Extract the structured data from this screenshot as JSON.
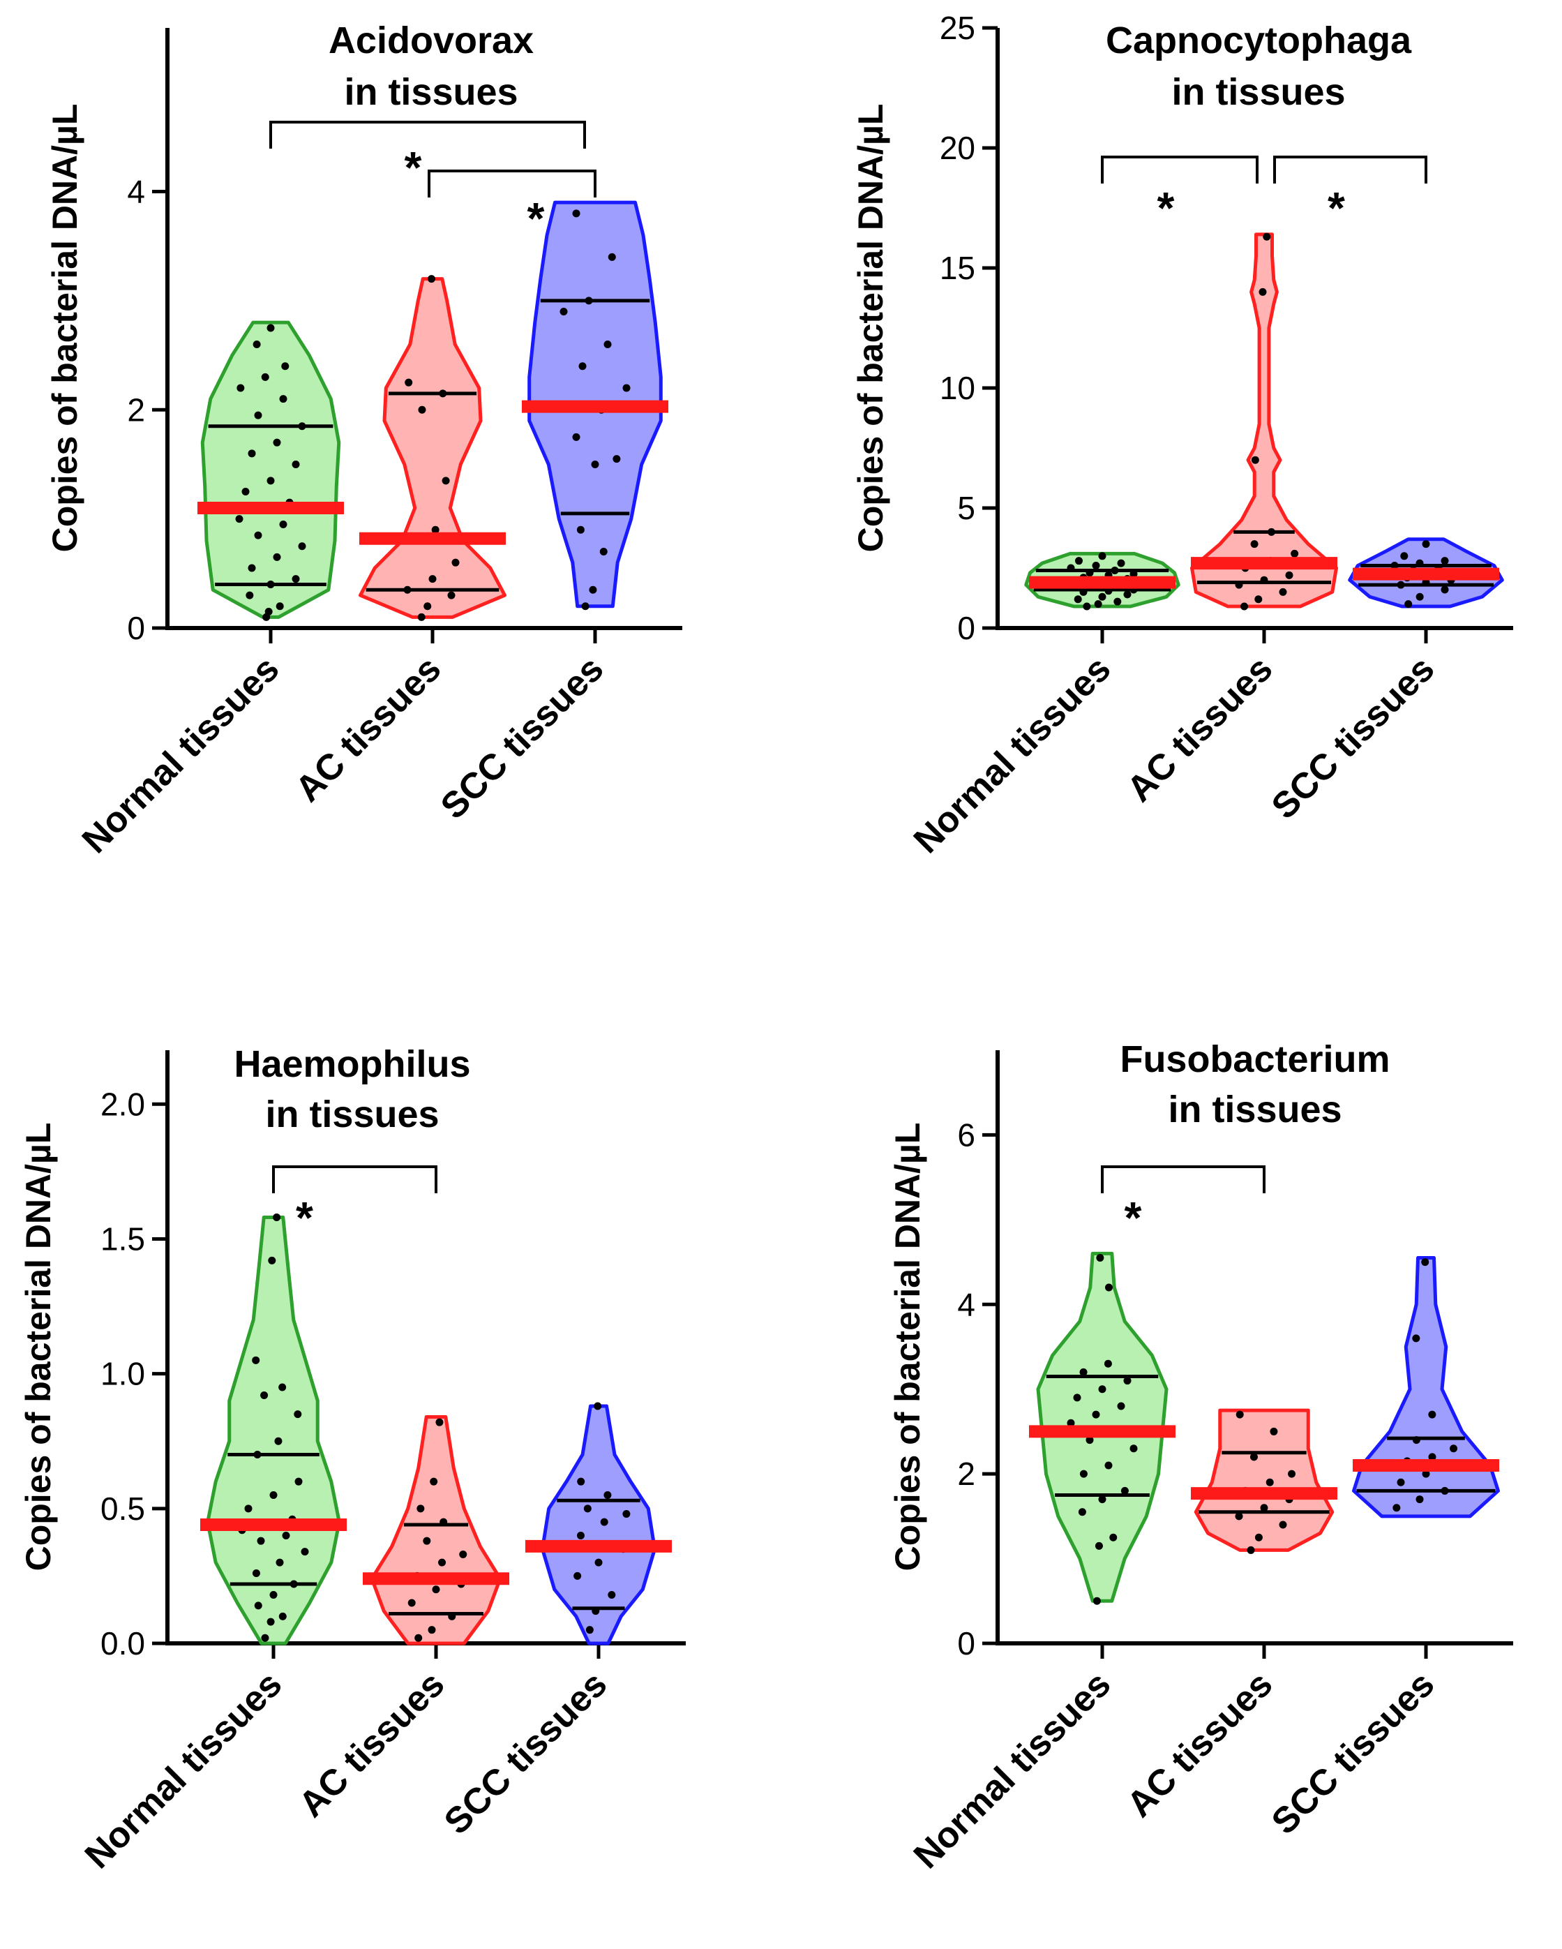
{
  "chart_data": [
    {
      "id": "acidovorax",
      "type": "violin",
      "title": [
        "Acidovorax",
        "in tissues"
      ],
      "ylabel": "Copies of bacterial DNA/µL",
      "ylim": [
        0,
        5.5
      ],
      "yticks": [
        0,
        2,
        4
      ],
      "categories": [
        "Normal tissues",
        "AC tissues",
        "SCC tissues"
      ],
      "colors": {
        "stroke": [
          "#2ea02e",
          "#ff2020",
          "#1a1aff"
        ],
        "fill": [
          "#b7f0b0",
          "#ffb3b3",
          "#9e9eff"
        ],
        "median": "#ff1a1a"
      },
      "series": [
        {
          "name": "Normal tissues",
          "min": 0.1,
          "max": 2.8,
          "q1": 0.4,
          "median": 1.1,
          "q3": 1.85,
          "profile": [
            [
              0.1,
              0.1
            ],
            [
              0.35,
              0.72
            ],
            [
              0.8,
              0.8
            ],
            [
              1.3,
              0.82
            ],
            [
              1.7,
              0.85
            ],
            [
              2.1,
              0.75
            ],
            [
              2.5,
              0.48
            ],
            [
              2.8,
              0.22
            ]
          ],
          "points": [
            0.1,
            0.15,
            0.2,
            0.3,
            0.4,
            0.45,
            0.55,
            0.65,
            0.75,
            0.85,
            0.95,
            1.0,
            1.1,
            1.15,
            1.25,
            1.35,
            1.5,
            1.6,
            1.7,
            1.85,
            1.95,
            2.1,
            2.2,
            2.3,
            2.4,
            2.6,
            2.75
          ]
        },
        {
          "name": "AC tissues",
          "min": 0.1,
          "max": 3.2,
          "q1": 0.35,
          "median": 0.82,
          "q3": 2.15,
          "profile": [
            [
              0.1,
              0.25
            ],
            [
              0.3,
              0.9
            ],
            [
              0.55,
              0.72
            ],
            [
              0.8,
              0.38
            ],
            [
              1.1,
              0.22
            ],
            [
              1.5,
              0.35
            ],
            [
              1.9,
              0.6
            ],
            [
              2.2,
              0.58
            ],
            [
              2.6,
              0.28
            ],
            [
              3.0,
              0.18
            ],
            [
              3.2,
              0.12
            ]
          ],
          "points": [
            0.1,
            0.2,
            0.3,
            0.35,
            0.45,
            0.6,
            0.8,
            0.9,
            1.35,
            2.0,
            2.15,
            2.25,
            3.2
          ]
        },
        {
          "name": "SCC tissues",
          "min": 0.2,
          "max": 3.9,
          "q1": 1.05,
          "median": 2.03,
          "q3": 3.0,
          "profile": [
            [
              0.2,
              0.22
            ],
            [
              0.6,
              0.28
            ],
            [
              1.0,
              0.45
            ],
            [
              1.5,
              0.58
            ],
            [
              1.9,
              0.82
            ],
            [
              2.3,
              0.82
            ],
            [
              2.8,
              0.75
            ],
            [
              3.2,
              0.68
            ],
            [
              3.6,
              0.6
            ],
            [
              3.9,
              0.5
            ]
          ],
          "points": [
            0.2,
            0.35,
            0.7,
            0.9,
            1.5,
            1.55,
            1.75,
            2.0,
            2.2,
            2.4,
            2.6,
            2.9,
            3.0,
            3.4,
            3.8
          ]
        }
      ],
      "significance": [
        {
          "from": 0,
          "to": 2,
          "label": "*"
        },
        {
          "from": 1,
          "to": 2,
          "label": "*"
        }
      ]
    },
    {
      "id": "capnocytophaga",
      "type": "violin",
      "title": [
        "Capnocytophaga",
        "in tissues"
      ],
      "ylabel": "Copies of bacterial DNA/µL",
      "ylim": [
        0,
        25
      ],
      "yticks": [
        0,
        5,
        10,
        15,
        20,
        25
      ],
      "categories": [
        "Normal tissues",
        "AC tissues",
        "SCC tissues"
      ],
      "colors": {
        "stroke": [
          "#2ea02e",
          "#ff2020",
          "#1a1aff"
        ],
        "fill": [
          "#b7f0b0",
          "#ffb3b3",
          "#9e9eff"
        ],
        "median": "#ff1a1a"
      },
      "series": [
        {
          "name": "Normal tissues",
          "min": 0.9,
          "max": 3.1,
          "q1": 1.6,
          "median": 1.9,
          "q3": 2.4,
          "profile": [
            [
              0.9,
              0.35
            ],
            [
              1.3,
              0.8
            ],
            [
              1.8,
              0.95
            ],
            [
              2.3,
              0.9
            ],
            [
              2.7,
              0.75
            ],
            [
              3.1,
              0.4
            ]
          ],
          "points": [
            0.9,
            1.0,
            1.1,
            1.2,
            1.3,
            1.4,
            1.5,
            1.55,
            1.6,
            1.7,
            1.75,
            1.8,
            1.85,
            1.9,
            1.95,
            2.0,
            2.05,
            2.1,
            2.2,
            2.25,
            2.3,
            2.4,
            2.5,
            2.6,
            2.7,
            2.8,
            3.0
          ]
        },
        {
          "name": "AC tissues",
          "min": 0.9,
          "max": 16.4,
          "q1": 1.9,
          "median": 2.7,
          "q3": 4.0,
          "profile": [
            [
              0.9,
              0.45
            ],
            [
              1.5,
              0.85
            ],
            [
              2.5,
              0.9
            ],
            [
              3.5,
              0.55
            ],
            [
              4.5,
              0.28
            ],
            [
              5.5,
              0.12
            ],
            [
              6.5,
              0.12
            ],
            [
              7.0,
              0.2
            ],
            [
              7.5,
              0.12
            ],
            [
              8.5,
              0.06
            ],
            [
              12.5,
              0.06
            ],
            [
              13.5,
              0.12
            ],
            [
              14.0,
              0.16
            ],
            [
              14.5,
              0.12
            ],
            [
              15.5,
              0.1
            ],
            [
              16.4,
              0.1
            ]
          ],
          "points": [
            0.9,
            1.2,
            1.5,
            1.8,
            2.0,
            2.2,
            2.5,
            2.8,
            3.1,
            3.5,
            4.0,
            7.0,
            14.0,
            16.3
          ]
        },
        {
          "name": "SCC tissues",
          "min": 0.9,
          "max": 3.7,
          "q1": 1.8,
          "median": 2.25,
          "q3": 2.6,
          "profile": [
            [
              0.9,
              0.3
            ],
            [
              1.3,
              0.7
            ],
            [
              2.0,
              0.95
            ],
            [
              2.6,
              0.85
            ],
            [
              3.2,
              0.5
            ],
            [
              3.7,
              0.22
            ]
          ],
          "points": [
            1.0,
            1.3,
            1.6,
            1.8,
            1.9,
            2.0,
            2.1,
            2.2,
            2.3,
            2.4,
            2.5,
            2.6,
            2.7,
            2.8,
            3.0,
            3.5
          ]
        }
      ],
      "significance": [
        {
          "from": 0,
          "to": 1,
          "label": "*"
        },
        {
          "from": 1,
          "to": 2,
          "label": "*"
        }
      ]
    },
    {
      "id": "haemophilus",
      "type": "violin",
      "title": [
        "Haemophilus",
        "in tissues"
      ],
      "ylabel": "Copies of bacterial DNA/µL",
      "ylim": [
        0,
        2.2
      ],
      "yticks": [
        "0.0",
        "0.5",
        "1.0",
        "1.5",
        "2.0"
      ],
      "categories": [
        "Normal tissues",
        "AC tissues",
        "SCC tissues"
      ],
      "colors": {
        "stroke": [
          "#2ea02e",
          "#ff2020",
          "#1a1aff"
        ],
        "fill": [
          "#b7f0b0",
          "#ffb3b3",
          "#9e9eff"
        ],
        "median": "#ff1a1a"
      },
      "series": [
        {
          "name": "Normal tissues",
          "min": 0.0,
          "max": 1.58,
          "q1": 0.22,
          "median": 0.44,
          "q3": 0.7,
          "profile": [
            [
              0.0,
              0.15
            ],
            [
              0.15,
              0.45
            ],
            [
              0.3,
              0.72
            ],
            [
              0.45,
              0.82
            ],
            [
              0.6,
              0.72
            ],
            [
              0.75,
              0.55
            ],
            [
              0.9,
              0.55
            ],
            [
              1.05,
              0.4
            ],
            [
              1.2,
              0.25
            ],
            [
              1.4,
              0.18
            ],
            [
              1.58,
              0.12
            ]
          ],
          "points": [
            0.02,
            0.08,
            0.1,
            0.14,
            0.18,
            0.22,
            0.26,
            0.3,
            0.34,
            0.38,
            0.4,
            0.42,
            0.44,
            0.46,
            0.5,
            0.55,
            0.6,
            0.7,
            0.75,
            0.85,
            0.92,
            0.95,
            1.05,
            1.42,
            1.58
          ]
        },
        {
          "name": "AC tissues",
          "min": 0.0,
          "max": 0.84,
          "q1": 0.11,
          "median": 0.24,
          "q3": 0.44,
          "profile": [
            [
              0.0,
              0.35
            ],
            [
              0.12,
              0.65
            ],
            [
              0.24,
              0.8
            ],
            [
              0.36,
              0.55
            ],
            [
              0.5,
              0.35
            ],
            [
              0.65,
              0.22
            ],
            [
              0.84,
              0.12
            ]
          ],
          "points": [
            0.02,
            0.05,
            0.1,
            0.15,
            0.2,
            0.22,
            0.25,
            0.3,
            0.33,
            0.38,
            0.45,
            0.5,
            0.6,
            0.82
          ]
        },
        {
          "name": "SCC tissues",
          "min": 0.0,
          "max": 0.88,
          "q1": 0.13,
          "median": 0.36,
          "q3": 0.53,
          "profile": [
            [
              0.0,
              0.12
            ],
            [
              0.1,
              0.28
            ],
            [
              0.2,
              0.55
            ],
            [
              0.35,
              0.7
            ],
            [
              0.5,
              0.62
            ],
            [
              0.6,
              0.4
            ],
            [
              0.7,
              0.2
            ],
            [
              0.88,
              0.1
            ]
          ],
          "points": [
            0.05,
            0.12,
            0.18,
            0.25,
            0.3,
            0.35,
            0.4,
            0.45,
            0.48,
            0.5,
            0.55,
            0.6,
            0.88
          ]
        }
      ],
      "significance": [
        {
          "from": 0,
          "to": 1,
          "label": "*"
        }
      ]
    },
    {
      "id": "fusobacterium",
      "type": "violin",
      "title": [
        "Fusobacterium",
        "in tissues"
      ],
      "ylabel": "Copies of bacterial DNA/µL",
      "ylim": [
        0,
        7
      ],
      "yticks": [
        0,
        2,
        4,
        6
      ],
      "categories": [
        "Normal tissues",
        "AC tissues",
        "SCC tissues"
      ],
      "colors": {
        "stroke": [
          "#2ea02e",
          "#ff2020",
          "#1a1aff"
        ],
        "fill": [
          "#b7f0b0",
          "#ffb3b3",
          "#9e9eff"
        ],
        "median": "#ff1a1a"
      },
      "series": [
        {
          "name": "Normal tissues",
          "min": 0.5,
          "max": 4.6,
          "q1": 1.75,
          "median": 2.5,
          "q3": 3.15,
          "profile": [
            [
              0.5,
              0.12
            ],
            [
              1.0,
              0.28
            ],
            [
              1.5,
              0.55
            ],
            [
              2.0,
              0.7
            ],
            [
              2.5,
              0.75
            ],
            [
              3.0,
              0.8
            ],
            [
              3.4,
              0.62
            ],
            [
              3.8,
              0.28
            ],
            [
              4.2,
              0.15
            ],
            [
              4.6,
              0.12
            ]
          ],
          "points": [
            0.5,
            1.15,
            1.25,
            1.55,
            1.7,
            1.8,
            2.0,
            2.1,
            2.3,
            2.4,
            2.5,
            2.6,
            2.7,
            2.8,
            2.9,
            3.0,
            3.1,
            3.2,
            3.3,
            4.2,
            4.55
          ]
        },
        {
          "name": "AC tissues",
          "min": 1.1,
          "max": 2.75,
          "q1": 1.55,
          "median": 1.77,
          "q3": 2.25,
          "profile": [
            [
              1.1,
              0.3
            ],
            [
              1.3,
              0.7
            ],
            [
              1.55,
              0.85
            ],
            [
              1.9,
              0.65
            ],
            [
              2.3,
              0.55
            ],
            [
              2.75,
              0.55
            ]
          ],
          "points": [
            1.1,
            1.25,
            1.4,
            1.5,
            1.6,
            1.7,
            1.8,
            1.9,
            2.0,
            2.2,
            2.5,
            2.7
          ]
        },
        {
          "name": "SCC tissues",
          "min": 1.5,
          "max": 4.55,
          "q1": 1.8,
          "median": 2.1,
          "q3": 2.42,
          "profile": [
            [
              1.5,
              0.55
            ],
            [
              1.8,
              0.9
            ],
            [
              2.1,
              0.8
            ],
            [
              2.5,
              0.45
            ],
            [
              3.0,
              0.2
            ],
            [
              3.5,
              0.25
            ],
            [
              4.0,
              0.12
            ],
            [
              4.55,
              0.1
            ]
          ],
          "points": [
            1.6,
            1.7,
            1.8,
            1.9,
            2.0,
            2.1,
            2.15,
            2.2,
            2.3,
            2.4,
            2.7,
            3.6,
            4.5
          ]
        }
      ],
      "significance": [
        {
          "from": 0,
          "to": 1,
          "label": "*"
        }
      ]
    }
  ]
}
